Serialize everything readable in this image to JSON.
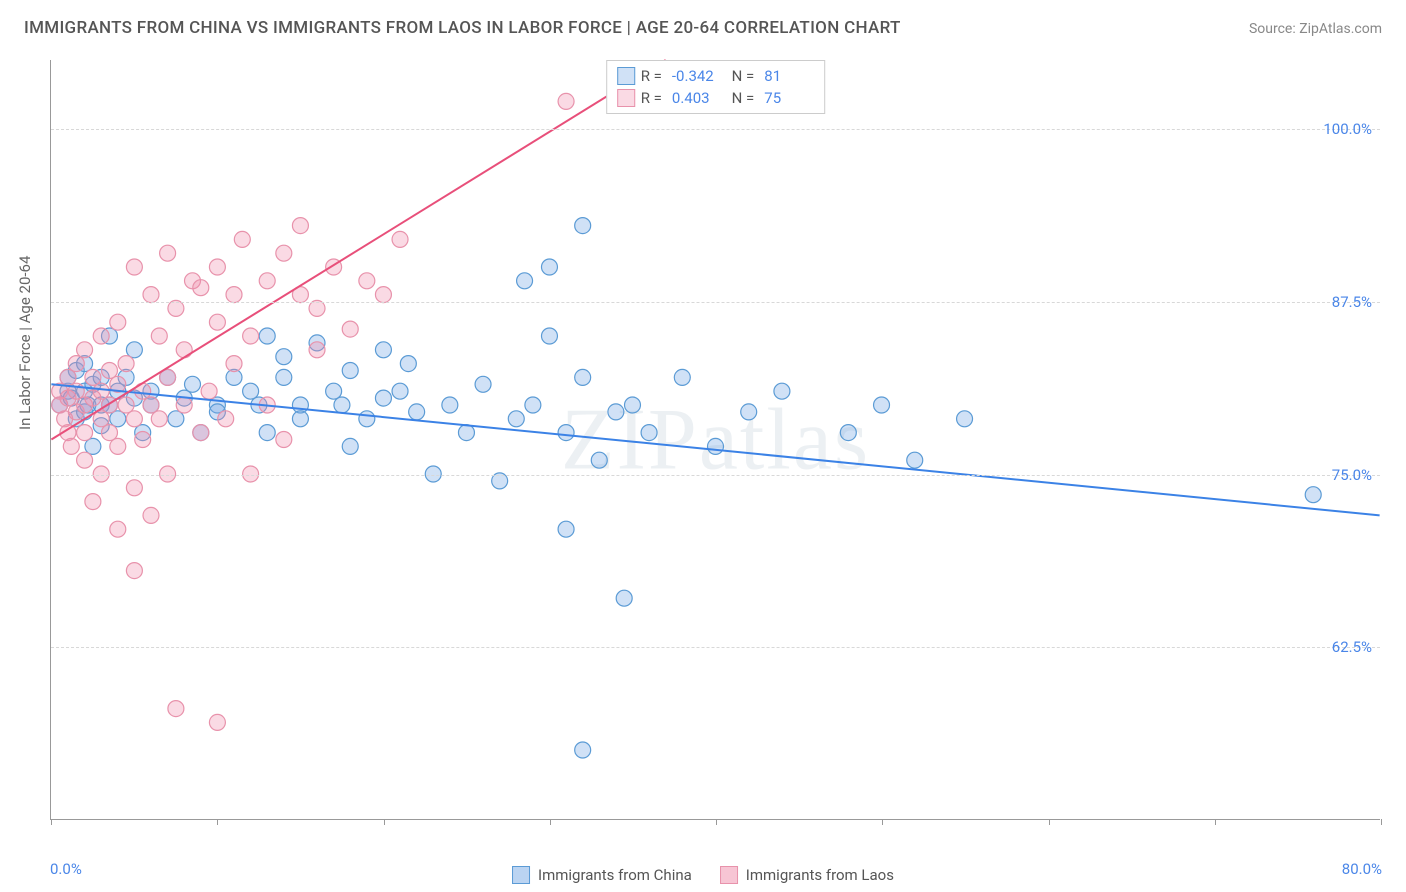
{
  "header": {
    "title": "IMMIGRANTS FROM CHINA VS IMMIGRANTS FROM LAOS IN LABOR FORCE | AGE 20-64 CORRELATION CHART",
    "source": "Source: ZipAtlas.com"
  },
  "watermark": "ZIPatlas",
  "chart": {
    "type": "scatter",
    "yaxis_title": "In Labor Force | Age 20-64",
    "xlim": [
      0,
      80
    ],
    "ylim": [
      50,
      105
    ],
    "xticks": [
      0,
      10,
      20,
      30,
      40,
      50,
      60,
      70,
      80
    ],
    "yticks": [
      62.5,
      75.0,
      87.5,
      100.0
    ],
    "ytick_labels": [
      "62.5%",
      "75.0%",
      "87.5%",
      "100.0%"
    ],
    "xlabel_min": "0.0%",
    "xlabel_max": "80.0%",
    "grid_color": "#d8d8d8",
    "axis_color": "#999999",
    "background_color": "#ffffff",
    "marker_radius": 8,
    "marker_stroke_width": 1.2,
    "line_width": 2,
    "series": [
      {
        "name": "Immigrants from China",
        "fill_color": "rgba(120,170,230,0.35)",
        "stroke_color": "#5b9bd5",
        "line_color": "#3b82e6",
        "R": "-0.342",
        "N": "81",
        "trend": {
          "x1": 0,
          "y1": 81.5,
          "x2": 80,
          "y2": 72.0
        },
        "points": [
          [
            0.5,
            80
          ],
          [
            1,
            81
          ],
          [
            1,
            82
          ],
          [
            1.2,
            80.5
          ],
          [
            1.5,
            79
          ],
          [
            1.5,
            82.5
          ],
          [
            2,
            81
          ],
          [
            2,
            79.5
          ],
          [
            2,
            83
          ],
          [
            2.2,
            80
          ],
          [
            2.5,
            77
          ],
          [
            2.5,
            81.5
          ],
          [
            3,
            80
          ],
          [
            3,
            82
          ],
          [
            3,
            78.5
          ],
          [
            3.5,
            85
          ],
          [
            3.5,
            80
          ],
          [
            4,
            81
          ],
          [
            4,
            79
          ],
          [
            4.5,
            82
          ],
          [
            5,
            80.5
          ],
          [
            5,
            84
          ],
          [
            5.5,
            78
          ],
          [
            6,
            81
          ],
          [
            6,
            80
          ],
          [
            7,
            82
          ],
          [
            7.5,
            79
          ],
          [
            8,
            80.5
          ],
          [
            8.5,
            81.5
          ],
          [
            9,
            78
          ],
          [
            10,
            80
          ],
          [
            10,
            79.5
          ],
          [
            11,
            82
          ],
          [
            12,
            81
          ],
          [
            12.5,
            80
          ],
          [
            13,
            85
          ],
          [
            13,
            78
          ],
          [
            14,
            82
          ],
          [
            14,
            83.5
          ],
          [
            15,
            80
          ],
          [
            15,
            79
          ],
          [
            16,
            84.5
          ],
          [
            17,
            81
          ],
          [
            17.5,
            80
          ],
          [
            18,
            82.5
          ],
          [
            18,
            77
          ],
          [
            19,
            79
          ],
          [
            20,
            84
          ],
          [
            20,
            80.5
          ],
          [
            21,
            81
          ],
          [
            21.5,
            83
          ],
          [
            22,
            79.5
          ],
          [
            23,
            75
          ],
          [
            24,
            80
          ],
          [
            25,
            78
          ],
          [
            26,
            81.5
          ],
          [
            27,
            74.5
          ],
          [
            28,
            79
          ],
          [
            28.5,
            89
          ],
          [
            29,
            80
          ],
          [
            30,
            90
          ],
          [
            30,
            85
          ],
          [
            31,
            78
          ],
          [
            31,
            71
          ],
          [
            32,
            82
          ],
          [
            32,
            55
          ],
          [
            33,
            76
          ],
          [
            34,
            79.5
          ],
          [
            34.5,
            66
          ],
          [
            35,
            80
          ],
          [
            36,
            78
          ],
          [
            38,
            82
          ],
          [
            40,
            77
          ],
          [
            42,
            79.5
          ],
          [
            44,
            81
          ],
          [
            48,
            78
          ],
          [
            50,
            80
          ],
          [
            52,
            76
          ],
          [
            55,
            79
          ],
          [
            76,
            73.5
          ],
          [
            32,
            93
          ]
        ]
      },
      {
        "name": "Immigrants from Laos",
        "fill_color": "rgba(240,140,170,0.32)",
        "stroke_color": "#e892ab",
        "line_color": "#e84f7a",
        "R": "0.403",
        "N": "75",
        "trend": {
          "x1": 0,
          "y1": 77.5,
          "x2": 37,
          "y2": 105
        },
        "points": [
          [
            0.5,
            80
          ],
          [
            0.5,
            81
          ],
          [
            0.8,
            79
          ],
          [
            1,
            82
          ],
          [
            1,
            78
          ],
          [
            1,
            80.5
          ],
          [
            1.2,
            77
          ],
          [
            1.5,
            83
          ],
          [
            1.5,
            79.5
          ],
          [
            1.5,
            81
          ],
          [
            2,
            80
          ],
          [
            2,
            76
          ],
          [
            2,
            84
          ],
          [
            2,
            78
          ],
          [
            2.5,
            82
          ],
          [
            2.5,
            80.5
          ],
          [
            2.5,
            73
          ],
          [
            3,
            81
          ],
          [
            3,
            79
          ],
          [
            3,
            85
          ],
          [
            3,
            75
          ],
          [
            3.5,
            80
          ],
          [
            3.5,
            78
          ],
          [
            3.5,
            82.5
          ],
          [
            4,
            81.5
          ],
          [
            4,
            77
          ],
          [
            4,
            86
          ],
          [
            4,
            71
          ],
          [
            4.5,
            80
          ],
          [
            4.5,
            83
          ],
          [
            5,
            74
          ],
          [
            5,
            79
          ],
          [
            5,
            90
          ],
          [
            5,
            68
          ],
          [
            5.5,
            81
          ],
          [
            5.5,
            77.5
          ],
          [
            6,
            88
          ],
          [
            6,
            72
          ],
          [
            6,
            80
          ],
          [
            6.5,
            85
          ],
          [
            6.5,
            79
          ],
          [
            7,
            91
          ],
          [
            7,
            75
          ],
          [
            7,
            82
          ],
          [
            7.5,
            87
          ],
          [
            7.5,
            58
          ],
          [
            8,
            80
          ],
          [
            8,
            84
          ],
          [
            8.5,
            89
          ],
          [
            9,
            78
          ],
          [
            9,
            88.5
          ],
          [
            9.5,
            81
          ],
          [
            10,
            86
          ],
          [
            10,
            90
          ],
          [
            10,
            57
          ],
          [
            10.5,
            79
          ],
          [
            11,
            83
          ],
          [
            11,
            88
          ],
          [
            11.5,
            92
          ],
          [
            12,
            85
          ],
          [
            12,
            75
          ],
          [
            13,
            89
          ],
          [
            13,
            80
          ],
          [
            14,
            91
          ],
          [
            14,
            77.5
          ],
          [
            15,
            88
          ],
          [
            15,
            93
          ],
          [
            16,
            84
          ],
          [
            16,
            87
          ],
          [
            17,
            90
          ],
          [
            18,
            85.5
          ],
          [
            19,
            89
          ],
          [
            20,
            88
          ],
          [
            21,
            92
          ],
          [
            31,
            102
          ]
        ]
      }
    ]
  },
  "legend_bottom": [
    {
      "label": "Immigrants from China",
      "fill": "rgba(120,170,230,0.5)",
      "stroke": "#5b9bd5"
    },
    {
      "label": "Immigrants from Laos",
      "fill": "rgba(240,140,170,0.5)",
      "stroke": "#e892ab"
    }
  ]
}
